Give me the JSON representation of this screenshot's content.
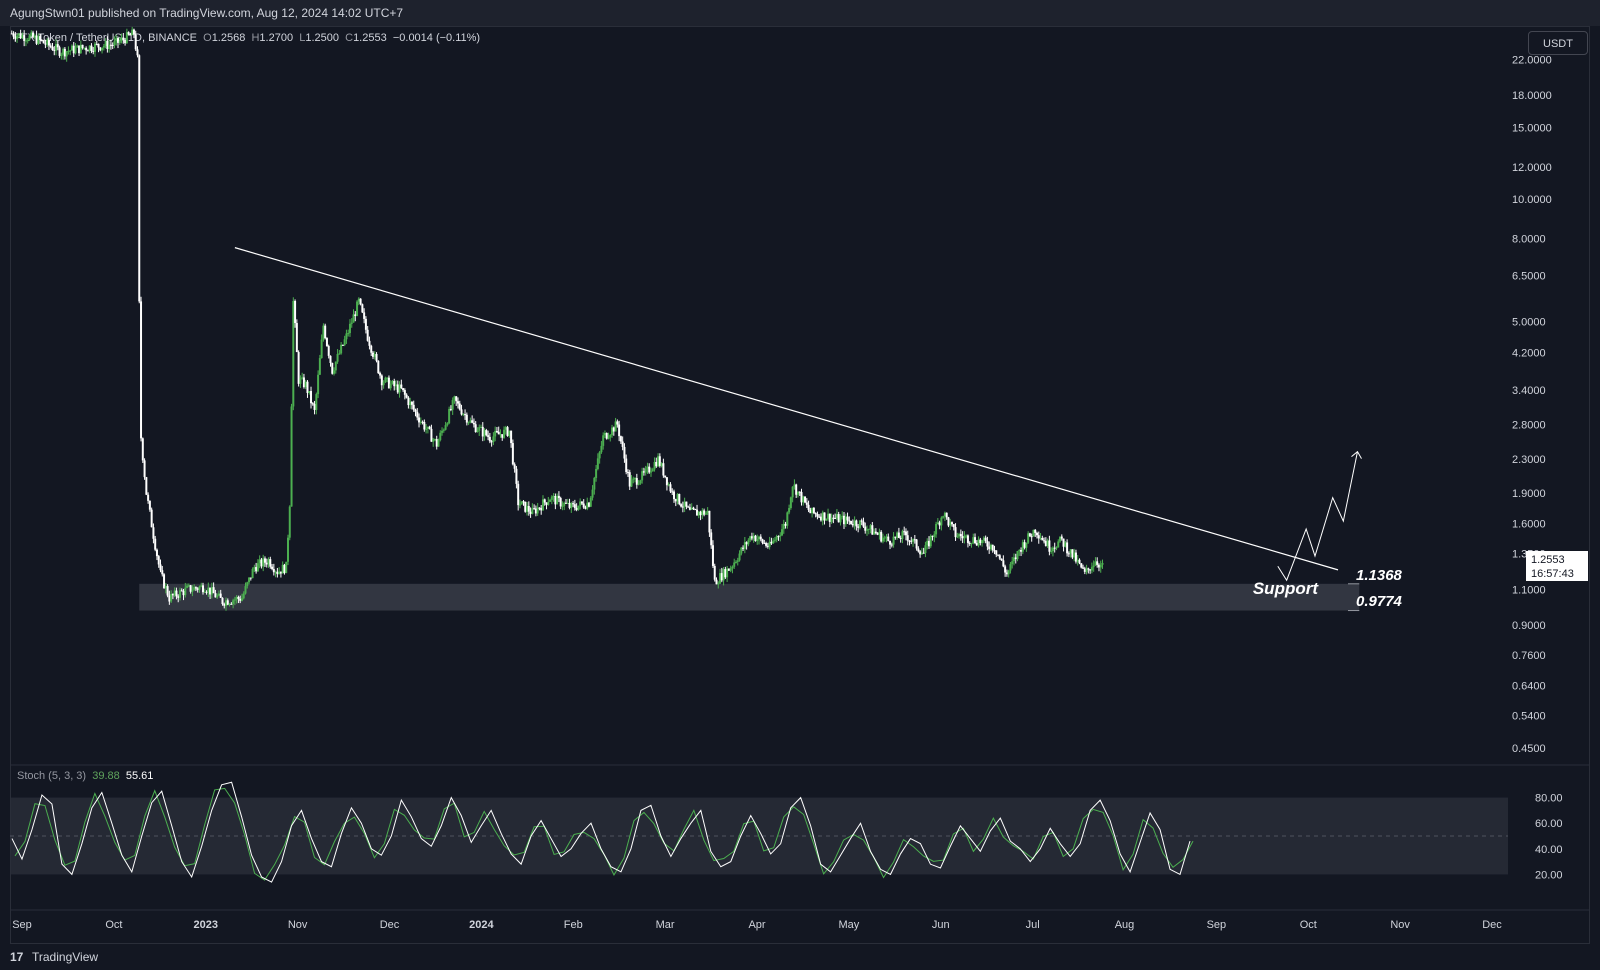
{
  "header": {
    "publisher": "AgungStwn01 published on TradingView.com, Aug 12, 2024 14:02 UTC+7"
  },
  "symbol": {
    "name": "FTX Token / TetherUS, 1D, BINANCE",
    "o_label": "O",
    "o": "1.2568",
    "h_label": "H",
    "h": "1.2700",
    "l_label": "L",
    "l": "1.2500",
    "c_label": "C",
    "c": "1.2553",
    "change": "−0.0014 (−0.11%)"
  },
  "currency": "USDT",
  "price_axis": {
    "ticks": [
      "22.0000",
      "18.0000",
      "15.0000",
      "12.0000",
      "10.0000",
      "8.0000",
      "6.5000",
      "5.0000",
      "4.2000",
      "3.4000",
      "2.8000",
      "2.3000",
      "1.9000",
      "1.6000",
      "1.3500",
      "1.1000",
      "0.9000",
      "0.7600",
      "0.6400",
      "0.5400",
      "0.4500"
    ],
    "last_price": "1.2553",
    "countdown": "16:57:43"
  },
  "time_axis": [
    "Sep",
    "Oct",
    "2023",
    "Nov",
    "Dec",
    "2024",
    "Feb",
    "Mar",
    "Apr",
    "May",
    "Jun",
    "Jul",
    "Aug",
    "Sep",
    "Oct",
    "Nov",
    "Dec"
  ],
  "annotations": {
    "support_label": "Support",
    "support_top": "1.1368",
    "support_bottom": "0.9774"
  },
  "stoch": {
    "label": "Stoch (5, 3, 3)",
    "k": "39.88",
    "d": "55.61",
    "ticks": [
      "80.00",
      "60.00",
      "40.00",
      "20.00"
    ]
  },
  "colors": {
    "bg": "#131722",
    "up": "#4caf50",
    "down": "#ffffff",
    "k_line": "#4caf50",
    "d_line": "#ffffff",
    "support_band": "#363a45"
  },
  "footer": {
    "brand": "TradingView",
    "logo": "tradingview-logo-icon"
  },
  "chart_data": {
    "type": "candlestick",
    "title": "FTX Token / TetherUS, 1D, BINANCE",
    "y_scale": "log",
    "ylim": [
      0.42,
      26
    ],
    "x_range": [
      "2022-08-27",
      "2024-12-20"
    ],
    "series": [
      {
        "name": "FTX Token / TetherUS",
        "points": [
          [
            "2022-08-28",
            25.5
          ],
          [
            "2022-09-10",
            24.8
          ],
          [
            "2022-09-25",
            23.0
          ],
          [
            "2022-10-10",
            23.6
          ],
          [
            "2022-10-25",
            24.0
          ],
          [
            "2022-11-05",
            25.5
          ],
          [
            "2022-11-07",
            22.0
          ],
          [
            "2022-11-08",
            5.5
          ],
          [
            "2022-11-09",
            2.6
          ],
          [
            "2022-11-12",
            1.9
          ],
          [
            "2022-11-16",
            1.5
          ],
          [
            "2022-11-20",
            1.2
          ],
          [
            "2022-11-25",
            1.05
          ],
          [
            "2022-12-05",
            1.1
          ],
          [
            "2022-12-15",
            1.12
          ],
          [
            "2022-12-25",
            1.03
          ],
          [
            "2023-01-05",
            1.05
          ],
          [
            "2023-01-12",
            1.25
          ],
          [
            "2023-01-20",
            1.3
          ],
          [
            "2023-01-25",
            1.22
          ],
          [
            "2023-01-30",
            1.25
          ],
          [
            "2023-02-01",
            1.8
          ],
          [
            "2023-02-03",
            5.6
          ],
          [
            "2023-02-06",
            3.6
          ],
          [
            "2023-02-10",
            3.5
          ],
          [
            "2023-02-15",
            3.0
          ],
          [
            "2023-02-20",
            4.9
          ],
          [
            "2023-02-25",
            3.8
          ],
          [
            "2023-03-05",
            4.6
          ],
          [
            "2023-03-12",
            5.6
          ],
          [
            "2023-03-17",
            4.6
          ],
          [
            "2023-03-25",
            3.6
          ],
          [
            "2023-04-05",
            3.4
          ],
          [
            "2023-04-15",
            2.9
          ],
          [
            "2023-04-25",
            2.5
          ],
          [
            "2023-05-05",
            3.2
          ],
          [
            "2023-05-15",
            2.8
          ],
          [
            "2023-05-25",
            2.6
          ],
          [
            "2023-06-05",
            2.7
          ],
          [
            "2023-06-10",
            1.8
          ],
          [
            "2023-06-18",
            1.7
          ],
          [
            "2023-06-28",
            1.85
          ],
          [
            "2023-07-10",
            1.75
          ],
          [
            "2023-07-20",
            1.8
          ],
          [
            "2023-07-28",
            2.6
          ],
          [
            "2023-08-05",
            2.8
          ],
          [
            "2023-08-12",
            2.0
          ],
          [
            "2023-08-20",
            2.1
          ],
          [
            "2023-08-28",
            2.3
          ],
          [
            "2023-09-05",
            1.9
          ],
          [
            "2023-09-15",
            1.7
          ],
          [
            "2023-09-25",
            1.7
          ],
          [
            "2023-09-29",
            1.15
          ],
          [
            "2023-10-08",
            1.25
          ],
          [
            "2023-10-20",
            1.5
          ],
          [
            "2023-10-30",
            1.4
          ],
          [
            "2023-11-08",
            1.6
          ],
          [
            "2023-11-12",
            2.0
          ],
          [
            "2023-11-22",
            1.7
          ],
          [
            "2023-12-05",
            1.65
          ],
          [
            "2023-12-20",
            1.6
          ],
          [
            "2024-01-05",
            1.45
          ],
          [
            "2024-01-15",
            1.5
          ],
          [
            "2024-01-25",
            1.35
          ],
          [
            "2024-02-05",
            1.7
          ],
          [
            "2024-02-12",
            1.5
          ],
          [
            "2024-02-25",
            1.45
          ],
          [
            "2024-03-05",
            1.4
          ],
          [
            "2024-03-12",
            1.2
          ],
          [
            "2024-03-20",
            1.4
          ],
          [
            "2024-03-28",
            1.55
          ],
          [
            "2024-04-05",
            1.4
          ],
          [
            "2024-04-12",
            1.45
          ],
          [
            "2024-04-20",
            1.3
          ],
          [
            "2024-04-25",
            1.2
          ],
          [
            "2024-05-01",
            1.3
          ],
          [
            "2024-05-05",
            1.25
          ]
        ]
      }
    ],
    "trendline": {
      "from": [
        "2023-01-01",
        7.6
      ],
      "to": [
        "2024-09-15",
        1.23
      ]
    },
    "support_zone": [
      0.9774,
      1.1368
    ],
    "projection": [
      [
        "2024-08-12",
        1.2553
      ],
      [
        "2024-08-17",
        1.16
      ],
      [
        "2024-08-28",
        1.55
      ],
      [
        "2024-09-02",
        1.33
      ],
      [
        "2024-09-12",
        1.85
      ],
      [
        "2024-09-18",
        1.62
      ],
      [
        "2024-09-26",
        2.4
      ]
    ],
    "stochastic": {
      "name": "Stoch (5, 3, 3)",
      "ylim": [
        0,
        100
      ],
      "band": [
        20,
        80
      ],
      "k_last": 39.88,
      "d_last": 55.61,
      "d_values": [
        48,
        32,
        55,
        82,
        75,
        28,
        20,
        44,
        72,
        84,
        60,
        35,
        22,
        50,
        76,
        85,
        58,
        30,
        18,
        42,
        70,
        90,
        92,
        65,
        35,
        18,
        14,
        30,
        58,
        70,
        48,
        30,
        26,
        52,
        72,
        60,
        40,
        35,
        50,
        78,
        65,
        48,
        42,
        58,
        80,
        66,
        45,
        58,
        70,
        52,
        36,
        28,
        50,
        62,
        48,
        34,
        40,
        52,
        60,
        40,
        26,
        22,
        40,
        70,
        74,
        50,
        34,
        48,
        60,
        70,
        38,
        26,
        30,
        50,
        66,
        52,
        36,
        44,
        72,
        80,
        58,
        28,
        22,
        35,
        48,
        60,
        38,
        24,
        20,
        36,
        48,
        44,
        28,
        25,
        42,
        58,
        48,
        38,
        54,
        64,
        46,
        40,
        30,
        40,
        56,
        44,
        34,
        44,
        70,
        78,
        62,
        36,
        22,
        45,
        68,
        55,
        24,
        20,
        46
      ]
    }
  }
}
